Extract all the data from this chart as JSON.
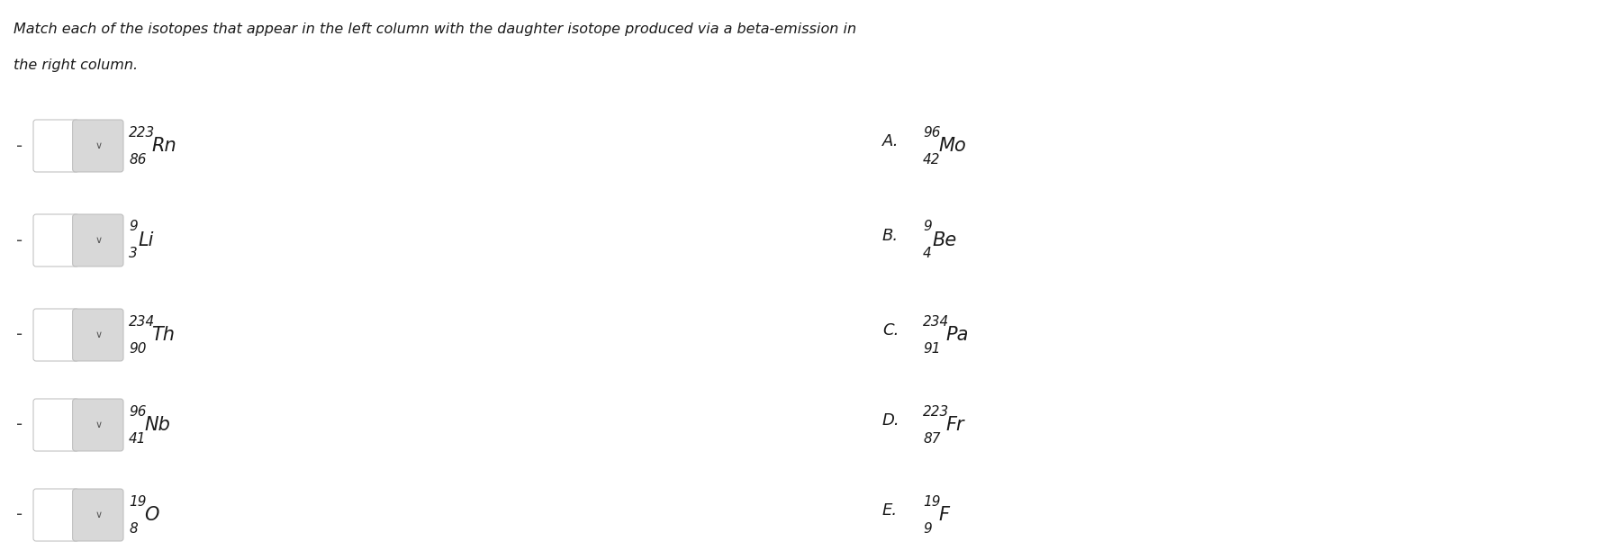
{
  "title_line1": "Match each of the isotopes that appear in the left column with the daughter isotope produced via a beta-emission in",
  "title_line2": "the right column.",
  "background_color": "#ffffff",
  "left_items": [
    {
      "mass": "223",
      "atomic": "86",
      "symbol": "Rn"
    },
    {
      "mass": "9",
      "atomic": "3",
      "symbol": "Li"
    },
    {
      "mass": "234",
      "atomic": "90",
      "symbol": "Th"
    },
    {
      "mass": "96",
      "atomic": "41",
      "symbol": "Nb"
    },
    {
      "mass": "19",
      "atomic": "8",
      "symbol": "O"
    }
  ],
  "right_items": [
    {
      "label": "A.",
      "mass": "96",
      "atomic": "42",
      "symbol": "Mo"
    },
    {
      "label": "B.",
      "mass": "9",
      "atomic": "4",
      "symbol": "Be"
    },
    {
      "label": "C.",
      "mass": "234",
      "atomic": "91",
      "symbol": "Pa"
    },
    {
      "label": "D.",
      "mass": "223",
      "atomic": "87",
      "symbol": "Fr"
    },
    {
      "label": "E.",
      "mass": "19",
      "atomic": "9",
      "symbol": "F"
    }
  ],
  "text_color": "#1a1a1a",
  "box_color": "#d8d8d8",
  "box_border_color": "#bbbbbb",
  "dash_color": "#444444"
}
